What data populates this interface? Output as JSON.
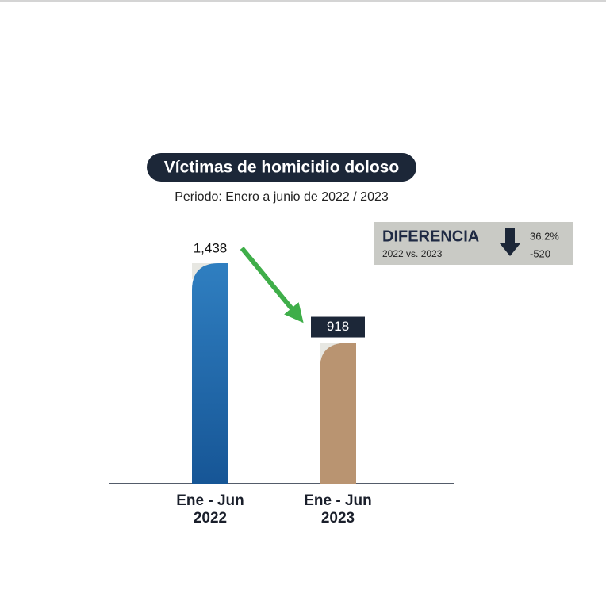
{
  "chart_data": {
    "type": "bar",
    "title": "Víctimas de homicidio doloso",
    "subtitle": "Periodo: Enero a junio de 2022 / 2023",
    "categories": [
      "Ene - Jun 2022",
      "Ene - Jun 2023"
    ],
    "values": [
      1438,
      918
    ],
    "value_labels": [
      "1,438",
      "918"
    ],
    "colors": [
      "#1f6db3",
      "#b99471"
    ],
    "annotation": {
      "title": "DIFERENCIA",
      "subtitle": "2022 vs. 2023",
      "percent": "36.2%",
      "change": "-520"
    }
  }
}
